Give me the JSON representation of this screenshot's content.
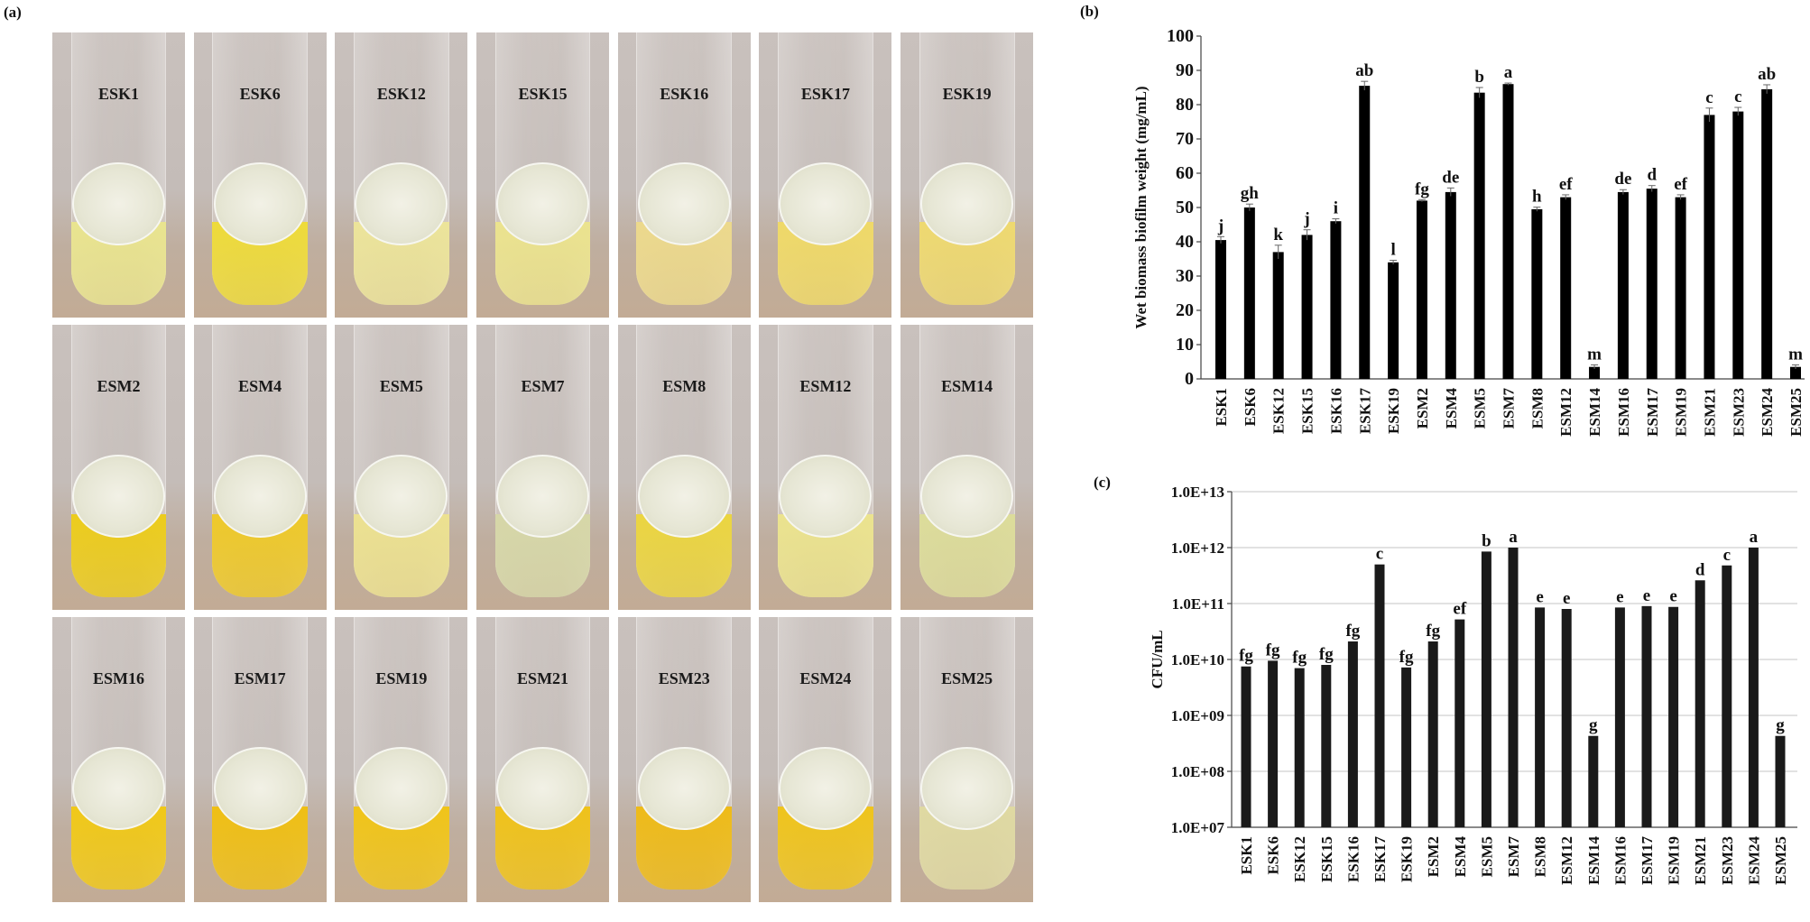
{
  "panels": {
    "a": "(a)",
    "b": "(b)",
    "c": "(c)"
  },
  "photos": [
    {
      "label": "ESK1",
      "liquid": "#e9e48f"
    },
    {
      "label": "ESK6",
      "liquid": "#eedb3a"
    },
    {
      "label": "ESK12",
      "liquid": "#ece49a"
    },
    {
      "label": "ESK15",
      "liquid": "#ebe38e"
    },
    {
      "label": "ESK16",
      "liquid": "#ecd98c"
    },
    {
      "label": "ESK17",
      "liquid": "#efd968"
    },
    {
      "label": "ESK19",
      "liquid": "#eed970"
    },
    {
      "label": "ESM2",
      "liquid": "#eccc1c"
    },
    {
      "label": "ESM4",
      "liquid": "#eec92a"
    },
    {
      "label": "ESM5",
      "liquid": "#ece190"
    },
    {
      "label": "ESM7",
      "liquid": "#d6d7a8"
    },
    {
      "label": "ESM8",
      "liquid": "#ebd540"
    },
    {
      "label": "ESM12",
      "liquid": "#ebe38e"
    },
    {
      "label": "ESM14",
      "liquid": "#dcdc9a"
    },
    {
      "label": "ESM16",
      "liquid": "#f0c818"
    },
    {
      "label": "ESM17",
      "liquid": "#efbf14"
    },
    {
      "label": "ESM19",
      "liquid": "#f0c419"
    },
    {
      "label": "ESM21",
      "liquid": "#efc21a"
    },
    {
      "label": "ESM23",
      "liquid": "#eebb18"
    },
    {
      "label": "ESM24",
      "liquid": "#efc41c"
    },
    {
      "label": "ESM25",
      "liquid": "#dfd9a2"
    }
  ],
  "chart_data": [
    {
      "type": "bar",
      "title": "",
      "xlabel": "",
      "ylabel": "Wet biomass biofilm weight (mg/mL)",
      "ylim": [
        0,
        100
      ],
      "yticks": [
        0,
        10,
        20,
        30,
        40,
        50,
        60,
        70,
        80,
        90,
        100
      ],
      "grid": false,
      "color": "#000000",
      "categories": [
        "ESK1",
        "ESK6",
        "ESK12",
        "ESK15",
        "ESK16",
        "ESK17",
        "ESK19",
        "ESM2",
        "ESM4",
        "ESM5",
        "ESM7",
        "ESM8",
        "ESM12",
        "ESM14",
        "ESM16",
        "ESM17",
        "ESM19",
        "ESM21",
        "ESM23",
        "ESM24",
        "ESM25"
      ],
      "values": [
        40.5,
        50,
        37,
        42,
        46,
        85.5,
        34,
        52,
        54.5,
        83.5,
        86,
        49.5,
        53,
        3.5,
        54.5,
        55.5,
        53,
        77,
        78,
        84.5,
        3.5
      ],
      "errors": [
        1,
        1,
        2,
        1.5,
        0.7,
        1.3,
        0.6,
        0.3,
        1.2,
        1.5,
        0.3,
        0.6,
        0.7,
        0.6,
        0.7,
        0.9,
        0.7,
        2,
        1.2,
        1.3,
        0.6
      ],
      "annotations": [
        "j",
        "gh",
        "k",
        "j",
        "i",
        "ab",
        "l",
        "fg",
        "de",
        "b",
        "a",
        "h",
        "ef",
        "m",
        "de",
        "d",
        "ef",
        "c",
        "c",
        "ab",
        "m"
      ]
    },
    {
      "type": "bar",
      "title": "",
      "xlabel": "",
      "ylabel": "CFU/mL",
      "yscale": "log",
      "ylim": [
        10000000.0,
        10000000000000.0
      ],
      "yticks": [
        "1.0E+07",
        "1.0E+08",
        "1.0E+09",
        "1.0E+10",
        "1.0E+11",
        "1.0E+12",
        "1.0E+13"
      ],
      "grid": true,
      "color": "#1a1a1a",
      "categories": [
        "ESK1",
        "ESK6",
        "ESK12",
        "ESK15",
        "ESK16",
        "ESK17",
        "ESK19",
        "ESM2",
        "ESM4",
        "ESM5",
        "ESM7",
        "ESM8",
        "ESM12",
        "ESM14",
        "ESM16",
        "ESM17",
        "ESM19",
        "ESM21",
        "ESM23",
        "ESM24",
        "ESM25"
      ],
      "values": [
        7500000000.0,
        9500000000.0,
        7000000000.0,
        8000000000.0,
        21000000000.0,
        500000000000.0,
        7200000000.0,
        21000000000.0,
        52000000000.0,
        850000000000.0,
        1000000000000.0,
        85000000000.0,
        80000000000.0,
        430000000.0,
        85000000000.0,
        90000000000.0,
        87000000000.0,
        260000000000.0,
        480000000000.0,
        1000000000000.0,
        430000000.0
      ],
      "annotations": [
        "fg",
        "fg",
        "fg",
        "fg",
        "fg",
        "c",
        "fg",
        "fg",
        "ef",
        "b",
        "a",
        "e",
        "e",
        "g",
        "e",
        "e",
        "e",
        "d",
        "c",
        "a",
        "g"
      ]
    }
  ]
}
